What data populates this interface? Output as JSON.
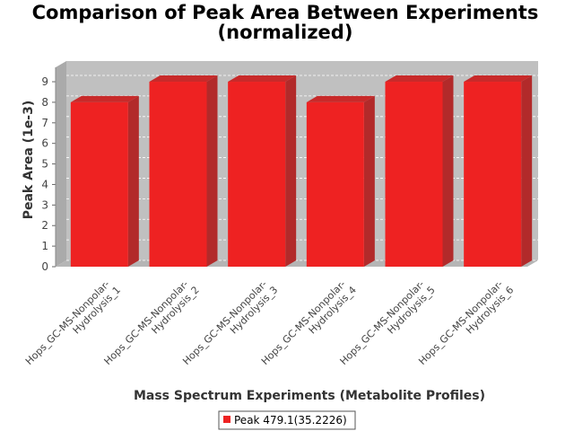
{
  "chart_data": {
    "type": "bar",
    "title_lines": [
      "Comparison of Peak Area Between Experiments",
      "(normalized)"
    ],
    "xlabel": "Mass Spectrum Experiments (Metabolite Profiles)",
    "ylabel": "Peak Area (1e-3)",
    "categories": [
      [
        "Hops_GC-MS-Nonpolar-",
        "Hydrolysis_1"
      ],
      [
        "Hops_GC-MS-Nonpolar-",
        "Hydrolysis_2"
      ],
      [
        "Hops_GC-MS-Nonpolar-",
        "Hydrolysis_3"
      ],
      [
        "Hops_GC-MS-Nonpolar-",
        "Hydrolysis_4"
      ],
      [
        "Hops_GC-MS-Nonpolar-",
        "Hydrolysis_5"
      ],
      [
        "Hops_GC-MS-Nonpolar-",
        "Hydrolysis_6"
      ]
    ],
    "series": [
      {
        "name": "Peak 479.1(35.2226)",
        "values": [
          8,
          9,
          9,
          8,
          9,
          9
        ],
        "color": "#ee2222"
      }
    ],
    "ylim": [
      0,
      9.7
    ],
    "yticks": [
      0,
      1,
      2,
      3,
      4,
      5,
      6,
      7,
      8,
      9
    ],
    "grid": true,
    "style": "3d",
    "legend_position": "bottom"
  }
}
